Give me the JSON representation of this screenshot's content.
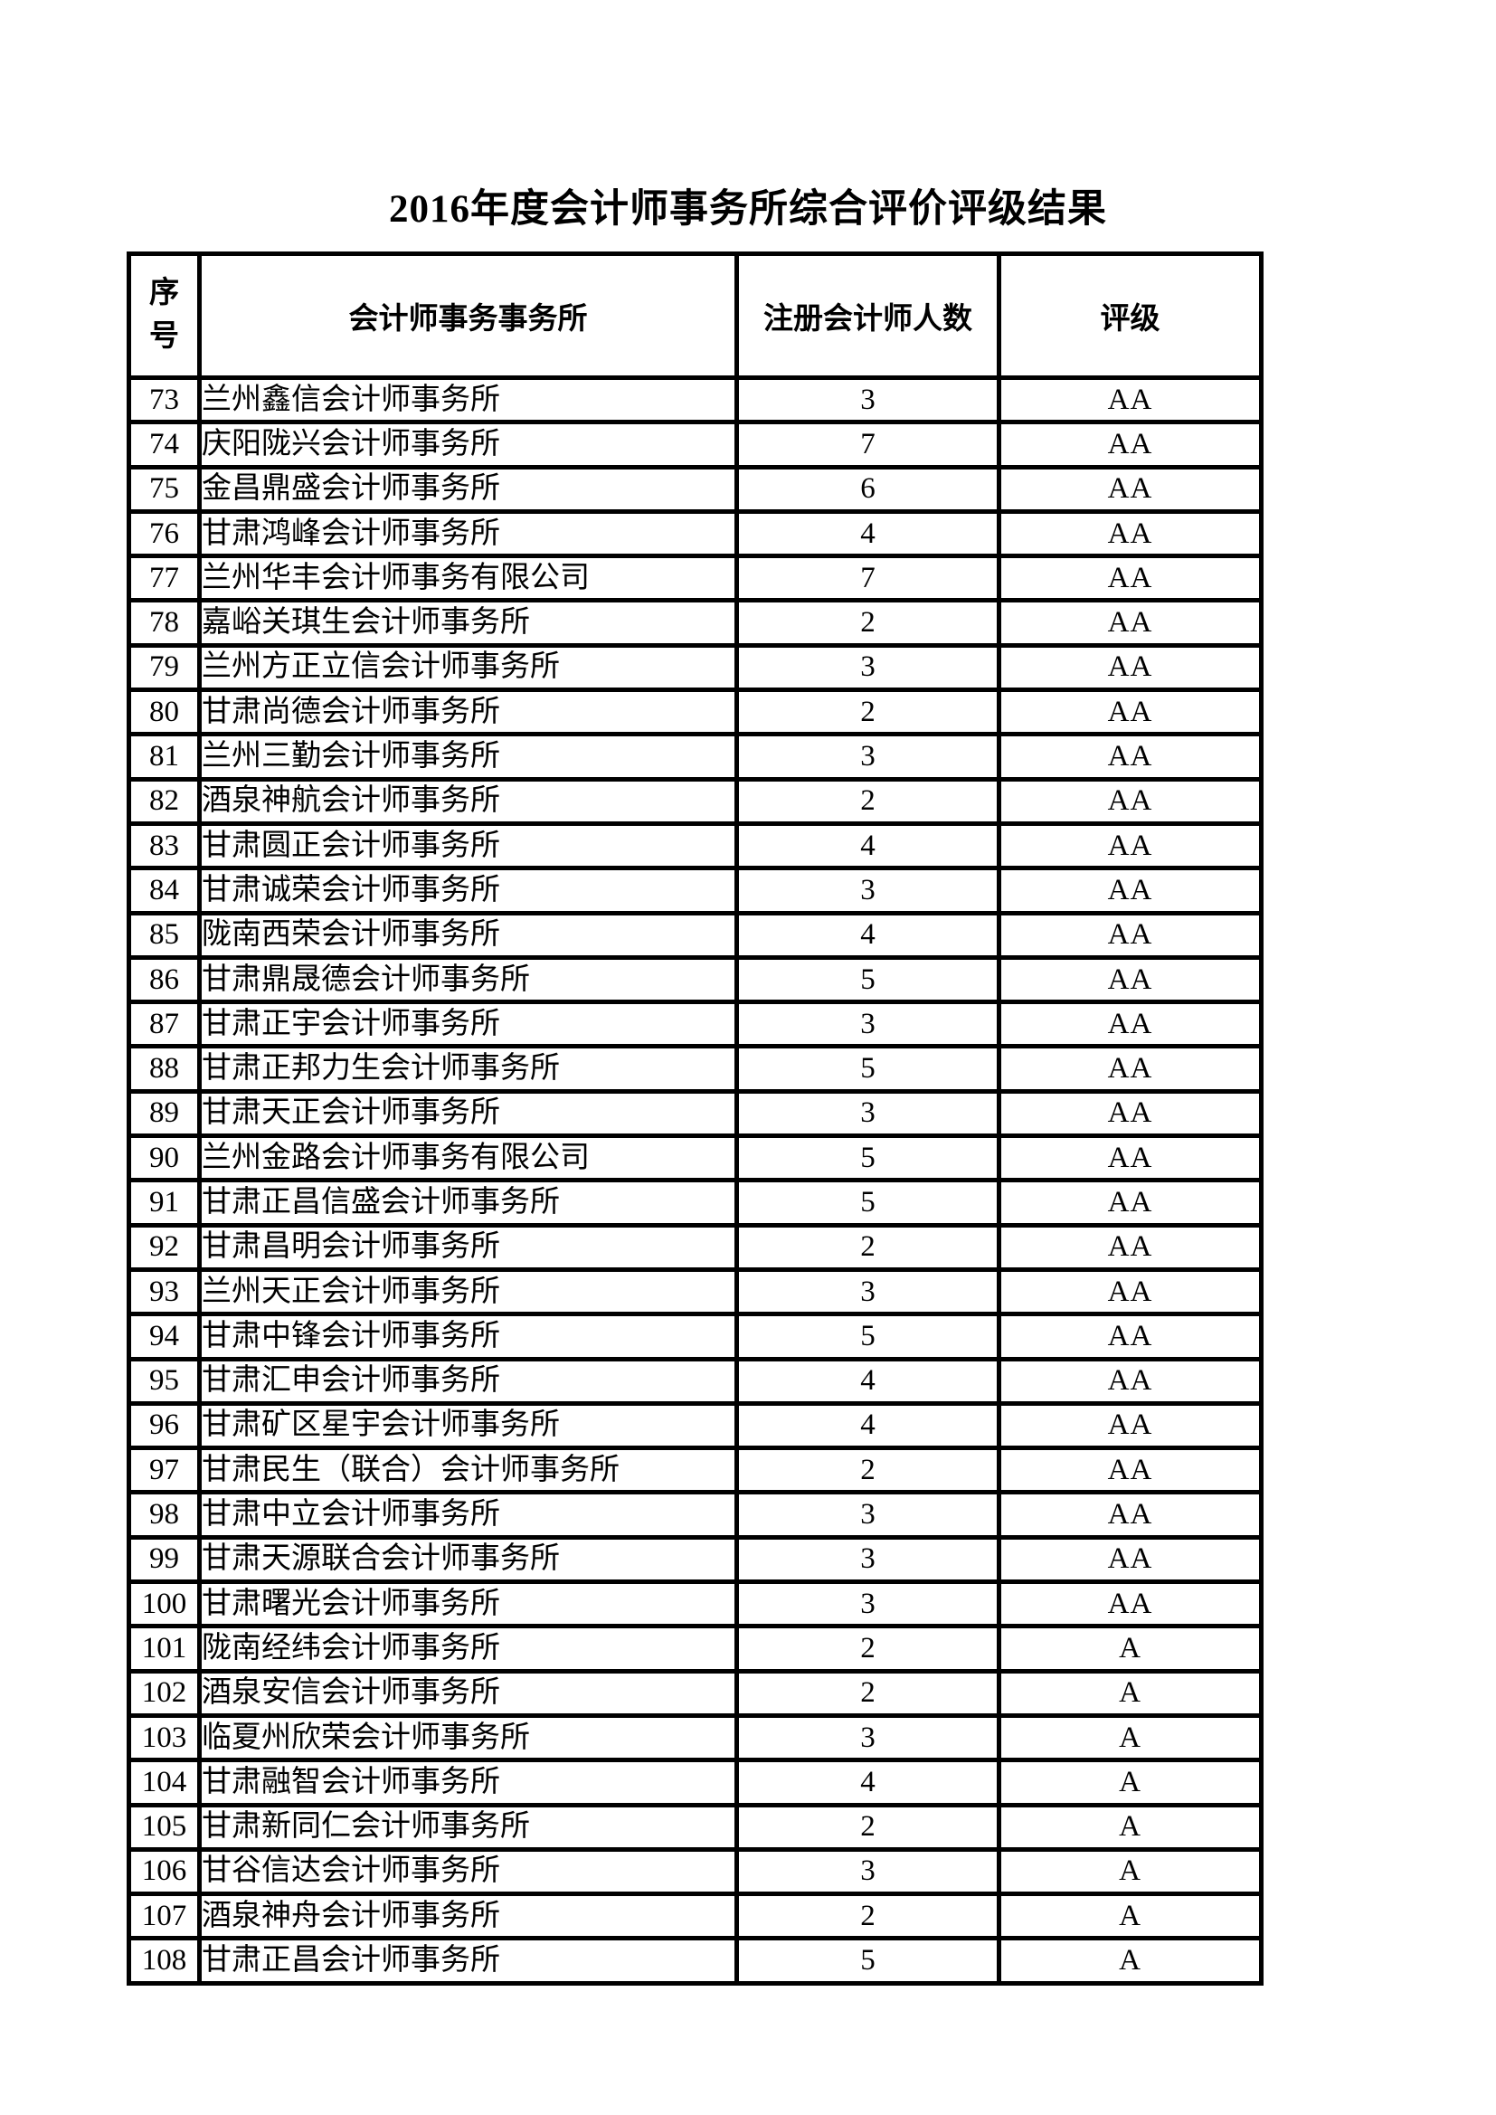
{
  "title": "2016年度会计师事务所综合评价评级结果",
  "table": {
    "headers": {
      "index": "序号",
      "firm": "会计师事务事务所",
      "cpa_count": "注册会计师人数",
      "rating": "评级"
    },
    "rows": [
      {
        "no": "73",
        "firm": "兰州鑫信会计师事务所",
        "count": "3",
        "rating": "AA"
      },
      {
        "no": "74",
        "firm": "庆阳陇兴会计师事务所",
        "count": "7",
        "rating": "AA"
      },
      {
        "no": "75",
        "firm": "金昌鼎盛会计师事务所",
        "count": "6",
        "rating": "AA"
      },
      {
        "no": "76",
        "firm": "甘肃鸿峰会计师事务所",
        "count": "4",
        "rating": "AA"
      },
      {
        "no": "77",
        "firm": "兰州华丰会计师事务有限公司",
        "count": "7",
        "rating": "AA"
      },
      {
        "no": "78",
        "firm": "嘉峪关琪生会计师事务所",
        "count": "2",
        "rating": "AA"
      },
      {
        "no": "79",
        "firm": "兰州方正立信会计师事务所",
        "count": "3",
        "rating": "AA"
      },
      {
        "no": "80",
        "firm": "甘肃尚德会计师事务所",
        "count": "2",
        "rating": "AA"
      },
      {
        "no": "81",
        "firm": "兰州三勤会计师事务所",
        "count": "3",
        "rating": "AA"
      },
      {
        "no": "82",
        "firm": "酒泉神航会计师事务所",
        "count": "2",
        "rating": "AA"
      },
      {
        "no": "83",
        "firm": "甘肃圆正会计师事务所",
        "count": "4",
        "rating": "AA"
      },
      {
        "no": "84",
        "firm": "甘肃诚荣会计师事务所",
        "count": "3",
        "rating": "AA"
      },
      {
        "no": "85",
        "firm": "陇南西荣会计师事务所",
        "count": "4",
        "rating": "AA"
      },
      {
        "no": "86",
        "firm": "甘肃鼎晟德会计师事务所",
        "count": "5",
        "rating": "AA"
      },
      {
        "no": "87",
        "firm": "甘肃正宇会计师事务所",
        "count": "3",
        "rating": "AA"
      },
      {
        "no": "88",
        "firm": "甘肃正邦力生会计师事务所",
        "count": "5",
        "rating": "AA"
      },
      {
        "no": "89",
        "firm": "甘肃天正会计师事务所",
        "count": "3",
        "rating": "AA"
      },
      {
        "no": "90",
        "firm": "兰州金路会计师事务有限公司",
        "count": "5",
        "rating": "AA"
      },
      {
        "no": "91",
        "firm": "甘肃正昌信盛会计师事务所",
        "count": "5",
        "rating": "AA"
      },
      {
        "no": "92",
        "firm": "甘肃昌明会计师事务所",
        "count": "2",
        "rating": "AA"
      },
      {
        "no": "93",
        "firm": "兰州天正会计师事务所",
        "count": "3",
        "rating": "AA"
      },
      {
        "no": "94",
        "firm": "甘肃中锋会计师事务所",
        "count": "5",
        "rating": "AA"
      },
      {
        "no": "95",
        "firm": "甘肃汇申会计师事务所",
        "count": "4",
        "rating": "AA"
      },
      {
        "no": "96",
        "firm": "甘肃矿区星宇会计师事务所",
        "count": "4",
        "rating": "AA"
      },
      {
        "no": "97",
        "firm": "甘肃民生（联合）会计师事务所",
        "count": "2",
        "rating": "AA"
      },
      {
        "no": "98",
        "firm": "甘肃中立会计师事务所",
        "count": "3",
        "rating": "AA"
      },
      {
        "no": "99",
        "firm": "甘肃天源联合会计师事务所",
        "count": "3",
        "rating": "AA"
      },
      {
        "no": "100",
        "firm": "甘肃曙光会计师事务所",
        "count": "3",
        "rating": "AA"
      },
      {
        "no": "101",
        "firm": "陇南经纬会计师事务所",
        "count": "2",
        "rating": "A"
      },
      {
        "no": "102",
        "firm": "酒泉安信会计师事务所",
        "count": "2",
        "rating": "A"
      },
      {
        "no": "103",
        "firm": "临夏州欣荣会计师事务所",
        "count": "3",
        "rating": "A"
      },
      {
        "no": "104",
        "firm": "甘肃融智会计师事务所",
        "count": "4",
        "rating": "A"
      },
      {
        "no": "105",
        "firm": "甘肃新同仁会计师事务所",
        "count": "2",
        "rating": "A"
      },
      {
        "no": "106",
        "firm": "甘谷信达会计师事务所",
        "count": "3",
        "rating": "A"
      },
      {
        "no": "107",
        "firm": "酒泉神舟会计师事务所",
        "count": "2",
        "rating": "A"
      },
      {
        "no": "108",
        "firm": "甘肃正昌会计师事务所",
        "count": "5",
        "rating": "A"
      }
    ]
  }
}
